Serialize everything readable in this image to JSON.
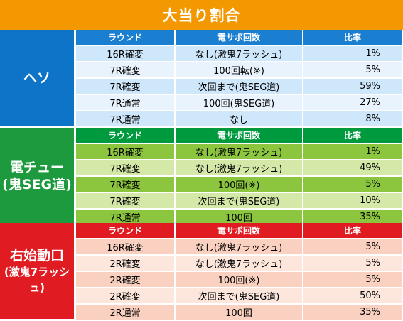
{
  "title": "大当り割合",
  "columns": {
    "round": "ラウンド",
    "support": "電サポ回数",
    "ratio": "比率"
  },
  "colors": {
    "title_bg": "#f39800",
    "heso_header": "#1a7fd0",
    "heso_side": "#0d74c8",
    "heso_row_a": "#cfe7fb",
    "heso_row_b": "#e8f3fd",
    "chu_header": "#009a3e",
    "chu_side": "#1e9a3e",
    "chu_row_a": "#8cc63f",
    "chu_row_b": "#d4e8a8",
    "migi_header": "#e01b22",
    "migi_side": "#e01b22",
    "migi_row_a": "#fad1c0",
    "migi_row_b": "#fde6dc"
  },
  "sections": [
    {
      "label_lines": [
        "ヘソ"
      ],
      "rows": [
        {
          "round": "16R確変",
          "support": "なし(激鬼7ラッシュ)",
          "ratio": "1%"
        },
        {
          "round": "7R確変",
          "support": "100回転(※)",
          "ratio": "5%"
        },
        {
          "round": "7R確変",
          "support": "次回まで(鬼SEG道)",
          "ratio": "59%"
        },
        {
          "round": "7R通常",
          "support": "100回(鬼SEG道)",
          "ratio": "27%"
        },
        {
          "round": "7R通常",
          "support": "なし",
          "ratio": "8%"
        }
      ]
    },
    {
      "label_lines": [
        "電チュー",
        "(鬼SEG道)"
      ],
      "rows": [
        {
          "round": "16R確変",
          "support": "なし(激鬼7ラッシュ)",
          "ratio": "1%"
        },
        {
          "round": "7R確変",
          "support": "なし(激鬼7ラッシュ)",
          "ratio": "49%"
        },
        {
          "round": "7R確変",
          "support": "100回(※)",
          "ratio": "5%"
        },
        {
          "round": "7R確変",
          "support": "次回まで(鬼SEG道)",
          "ratio": "10%"
        },
        {
          "round": "7R通常",
          "support": "100回",
          "ratio": "35%"
        }
      ]
    },
    {
      "label_lines": [
        "右始動口",
        "(激鬼7ラッシュ)"
      ],
      "rows": [
        {
          "round": "16R確変",
          "support": "なし(激鬼7ラッシュ)",
          "ratio": "5%"
        },
        {
          "round": "2R確変",
          "support": "なし(激鬼7ラッシュ)",
          "ratio": "5%"
        },
        {
          "round": "2R確変",
          "support": "100回(※)",
          "ratio": "5%"
        },
        {
          "round": "2R確変",
          "support": "次回まで(鬼SEG道)",
          "ratio": "50%"
        },
        {
          "round": "2R通常",
          "support": "100回",
          "ratio": "35%"
        }
      ]
    }
  ]
}
